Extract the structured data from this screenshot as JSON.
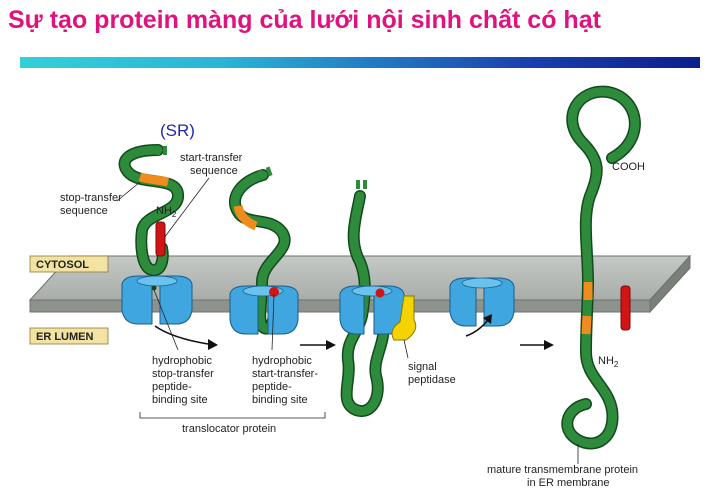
{
  "title": "Sự tạo protein màng của lưới nội sinh chất có hạt",
  "labels": {
    "sr": "(SR)",
    "start_transfer_1": "start-transfer",
    "start_transfer_2": "sequence",
    "stop_transfer_1": "stop-transfer",
    "stop_transfer_2": "sequence",
    "nh2_top": "NH",
    "nh2_sub": "2",
    "cytosol": "CYTOSOL",
    "er_lumen": "ER LUMEN",
    "hydro_stop": [
      "hydrophobic",
      "stop-transfer",
      "peptide-",
      "binding site"
    ],
    "hydro_start": [
      "hydrophobic",
      "start-transfer-",
      "peptide-",
      "binding site"
    ],
    "signal_peptidase": [
      "signal",
      "peptidase"
    ],
    "translocator": "translocator protein",
    "cooh": "COOH",
    "nh2_right": "NH",
    "nh2_right_sub": "2",
    "mature": [
      "mature transmembrane protein",
      "in ER membrane"
    ]
  },
  "colors": {
    "title": "#e0127e",
    "protein": "#2e8b3c",
    "protein_outline": "#124a1c",
    "hydrophobic_segment": "#f08c1e",
    "signal_red": "#d21414",
    "translocator": "#3fa6e0",
    "membrane_top": "#b9bdb9",
    "membrane_front": "#8d928d",
    "peptidase": "#f4d400",
    "label_box": "#f2e3a2",
    "sr_label": "#1f2aa8"
  }
}
